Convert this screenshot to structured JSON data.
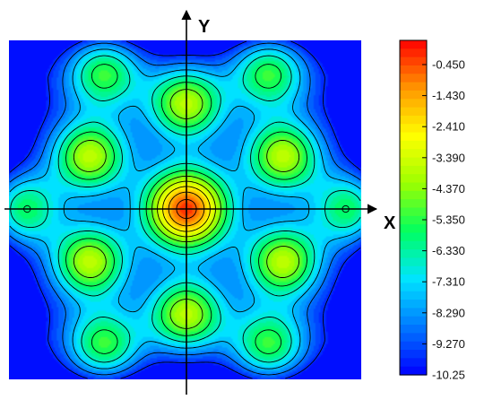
{
  "chart_data": {
    "type": "heatmap",
    "title": "",
    "xlabel": "X",
    "ylabel": "Y",
    "xlim": [
      -1,
      1
    ],
    "ylim": [
      -1,
      1
    ],
    "grid": false,
    "field": {
      "symmetry": "six-fold (hexagonal)",
      "center_value": -0.45,
      "features": [
        {
          "kind": "maximum",
          "x": 0.0,
          "y": 0.0,
          "value": -0.45
        },
        {
          "kind": "local-maximum",
          "x": 0.0,
          "y": 0.62,
          "value": -3.9
        },
        {
          "kind": "local-maximum",
          "x": 0.0,
          "y": -0.62,
          "value": -3.9
        },
        {
          "kind": "local-maximum",
          "x": 0.54,
          "y": 0.31,
          "value": -3.9
        },
        {
          "kind": "local-maximum",
          "x": -0.54,
          "y": 0.31,
          "value": -3.9
        },
        {
          "kind": "local-maximum",
          "x": 0.54,
          "y": -0.31,
          "value": -3.9
        },
        {
          "kind": "local-maximum",
          "x": -0.54,
          "y": -0.31,
          "value": -3.9
        },
        {
          "kind": "local-maximum",
          "x": 0.92,
          "y": 0.0,
          "value": -5.0
        },
        {
          "kind": "local-maximum",
          "x": -0.92,
          "y": 0.0,
          "value": -5.0
        },
        {
          "kind": "local-maximum",
          "x": 0.46,
          "y": 0.8,
          "value": -5.0
        },
        {
          "kind": "local-maximum",
          "x": -0.46,
          "y": 0.8,
          "value": -5.0
        },
        {
          "kind": "local-maximum",
          "x": 0.46,
          "y": -0.8,
          "value": -5.0
        },
        {
          "kind": "local-maximum",
          "x": -0.46,
          "y": -0.8,
          "value": -5.0
        }
      ]
    },
    "colorbar": {
      "min": -10.25,
      "max": 0.04,
      "tick_labels": [
        "-0.450",
        "-1.430",
        "-2.410",
        "-3.390",
        "-4.370",
        "-5.350",
        "-6.330",
        "-7.310",
        "-8.290",
        "-9.270",
        "-10.25"
      ],
      "tick_values": [
        -0.45,
        -1.43,
        -2.41,
        -3.39,
        -4.37,
        -5.35,
        -6.33,
        -7.31,
        -8.29,
        -9.27,
        -10.25
      ],
      "colormap": [
        "#0000ff",
        "#0078ff",
        "#00e4ff",
        "#00ff60",
        "#9cff00",
        "#ffff00",
        "#ff9600",
        "#ff0000"
      ]
    },
    "contour_line_color": "#000000"
  }
}
